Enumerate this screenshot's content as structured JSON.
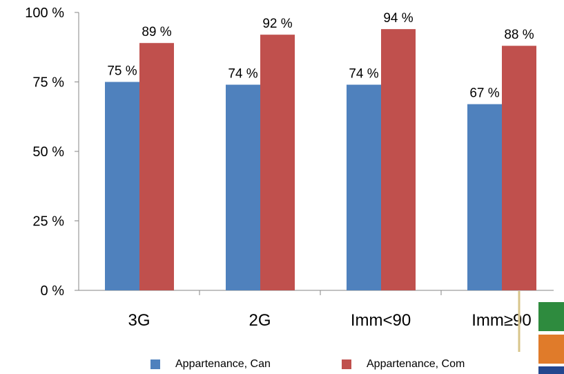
{
  "chart_data": {
    "type": "bar",
    "categories": [
      "3G",
      "2G",
      "Imm<90",
      "Imm≥90"
    ],
    "series": [
      {
        "name": "Appartenance, Can",
        "values": [
          75,
          74,
          74,
          67
        ],
        "labels": [
          "75 %",
          "74 %",
          "74 %",
          "67 %"
        ],
        "color": "#4F81BD"
      },
      {
        "name": "Appartenance, Com",
        "values": [
          89,
          92,
          94,
          88
        ],
        "labels": [
          "89 %",
          "92 %",
          "94 %",
          "88 %"
        ],
        "color": "#C0504D"
      }
    ],
    "yticks": [
      0,
      25,
      50,
      75,
      100
    ],
    "ytick_labels": [
      "0 %",
      "25 %",
      "50 %",
      "75 %",
      "100 %"
    ],
    "ylim": [
      0,
      100
    ],
    "title": "",
    "xlabel": "",
    "ylabel": "",
    "grid": false,
    "legend_position": "bottom"
  },
  "decoration": {
    "corner_colors": [
      "#2E8B3E",
      "#E07B2A",
      "#24478F"
    ],
    "divider_color": "#D8C58A"
  }
}
